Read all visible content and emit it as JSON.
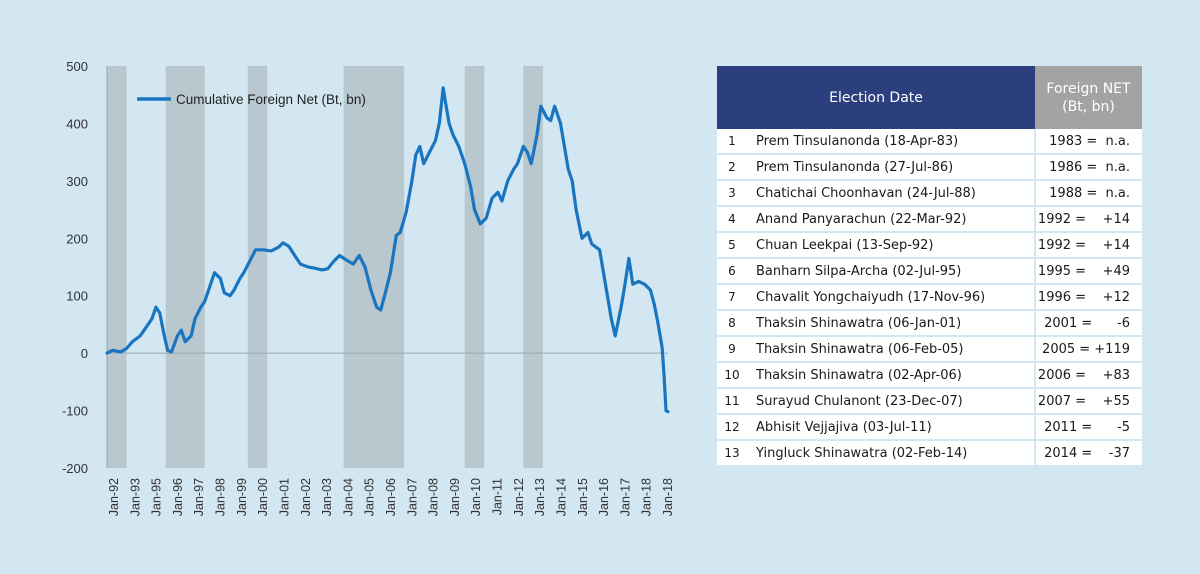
{
  "chart_data": {
    "type": "line",
    "series": [
      {
        "name": "Cumulative Foreign Net (Bt, bn)",
        "color": "#1a75c0",
        "points": [
          [
            1992.0,
            0
          ],
          [
            1992.3,
            5
          ],
          [
            1992.7,
            2
          ],
          [
            1993.0,
            8
          ],
          [
            1993.3,
            20
          ],
          [
            1993.7,
            30
          ],
          [
            1994.0,
            45
          ],
          [
            1994.3,
            60
          ],
          [
            1994.5,
            80
          ],
          [
            1994.7,
            70
          ],
          [
            1994.9,
            35
          ],
          [
            1995.1,
            5
          ],
          [
            1995.3,
            2
          ],
          [
            1995.6,
            30
          ],
          [
            1995.8,
            40
          ],
          [
            1996.0,
            20
          ],
          [
            1996.3,
            30
          ],
          [
            1996.5,
            60
          ],
          [
            1996.8,
            80
          ],
          [
            1997.0,
            90
          ],
          [
            1997.3,
            120
          ],
          [
            1997.5,
            140
          ],
          [
            1997.8,
            130
          ],
          [
            1998.0,
            105
          ],
          [
            1998.3,
            100
          ],
          [
            1998.5,
            110
          ],
          [
            1998.8,
            130
          ],
          [
            1999.0,
            140
          ],
          [
            1999.3,
            160
          ],
          [
            1999.6,
            180
          ],
          [
            2000.0,
            180
          ],
          [
            2000.4,
            178
          ],
          [
            2000.8,
            185
          ],
          [
            2001.0,
            192
          ],
          [
            2001.3,
            186
          ],
          [
            2001.6,
            170
          ],
          [
            2001.9,
            155
          ],
          [
            2002.3,
            150
          ],
          [
            2002.6,
            148
          ],
          [
            2003.0,
            145
          ],
          [
            2003.3,
            147
          ],
          [
            2003.6,
            160
          ],
          [
            2003.9,
            170
          ],
          [
            2004.2,
            163
          ],
          [
            2004.6,
            155
          ],
          [
            2004.9,
            170
          ],
          [
            2005.2,
            150
          ],
          [
            2005.5,
            110
          ],
          [
            2005.8,
            80
          ],
          [
            2006.0,
            75
          ],
          [
            2006.2,
            100
          ],
          [
            2006.5,
            140
          ],
          [
            2006.8,
            205
          ],
          [
            2007.0,
            210
          ],
          [
            2007.3,
            245
          ],
          [
            2007.6,
            300
          ],
          [
            2007.8,
            345
          ],
          [
            2008.0,
            360
          ],
          [
            2008.2,
            330
          ],
          [
            2008.5,
            350
          ],
          [
            2008.8,
            370
          ],
          [
            2009.0,
            400
          ],
          [
            2009.2,
            462
          ],
          [
            2009.3,
            440
          ],
          [
            2009.5,
            400
          ],
          [
            2009.7,
            380
          ],
          [
            2010.0,
            360
          ],
          [
            2010.3,
            330
          ],
          [
            2010.6,
            290
          ],
          [
            2010.8,
            250
          ],
          [
            2011.1,
            225
          ],
          [
            2011.4,
            235
          ],
          [
            2011.7,
            270
          ],
          [
            2012.0,
            280
          ],
          [
            2012.2,
            265
          ],
          [
            2012.5,
            300
          ],
          [
            2012.8,
            320
          ],
          [
            2013.0,
            330
          ],
          [
            2013.3,
            360
          ],
          [
            2013.5,
            350
          ],
          [
            2013.7,
            330
          ],
          [
            2014.0,
            380
          ],
          [
            2014.2,
            430
          ],
          [
            2014.5,
            410
          ],
          [
            2014.7,
            405
          ],
          [
            2014.9,
            430
          ],
          [
            2015.0,
            420
          ],
          [
            2015.2,
            400
          ],
          [
            2015.4,
            360
          ],
          [
            2015.6,
            320
          ],
          [
            2015.8,
            300
          ],
          [
            2016.0,
            250
          ],
          [
            2016.3,
            200
          ],
          [
            2016.6,
            210
          ],
          [
            2016.8,
            190
          ],
          [
            2017.2,
            180
          ],
          [
            2017.4,
            140
          ],
          [
            2017.6,
            100
          ],
          [
            2017.8,
            60
          ],
          [
            2018.0,
            30
          ],
          [
            2018.3,
            80
          ],
          [
            2018.5,
            120
          ],
          [
            2018.7,
            165
          ],
          [
            2018.9,
            120
          ],
          [
            2019.2,
            125
          ],
          [
            2019.5,
            120
          ],
          [
            2019.8,
            110
          ],
          [
            2020.0,
            85
          ],
          [
            2020.2,
            50
          ],
          [
            2020.4,
            10
          ],
          [
            2020.5,
            -40
          ],
          [
            2020.6,
            -100
          ],
          [
            2020.7,
            -102
          ]
        ]
      }
    ],
    "ylim": [
      -200,
      500
    ],
    "yticks": [
      "500",
      "400",
      "300",
      "200",
      "100",
      "0",
      "-100",
      "-200"
    ],
    "ytick_values": [
      500,
      400,
      300,
      200,
      100,
      0,
      -100,
      -200
    ],
    "xticks": [
      "Jan-92",
      "Jan-93",
      "Jan-95",
      "Jan-96",
      "Jan-97",
      "Jan-98",
      "Jan-99",
      "Jan-00",
      "Jan-01",
      "Jan-02",
      "Jan-03",
      "Jan-04",
      "Jan-05",
      "Jan-06",
      "Jan-07",
      "Jan-08",
      "Jan-09",
      "Jan-10",
      "Jan-11",
      "Jan-12",
      "Jan-13",
      "Jan-14",
      "Jan-15",
      "Jan-16",
      "Jan-17",
      "Jan-18",
      "Jan-18"
    ],
    "election_bands": [
      [
        1992.0,
        1993.0
      ],
      [
        1995.0,
        1997.0
      ],
      [
        1999.2,
        2000.2
      ],
      [
        2004.1,
        2007.2
      ],
      [
        2010.3,
        2011.3
      ],
      [
        2013.3,
        2014.3
      ]
    ],
    "legend": "top-left",
    "grid": false,
    "colors": {
      "line": "#1a75c0",
      "band": "#b9c7cf",
      "axis_text": "#333333"
    }
  },
  "table": {
    "header_date": "Election Date",
    "header_net_line1": "Foreign NET",
    "header_net_line2": "(Bt, bn)",
    "rows": [
      {
        "n": "1",
        "name": "Prem Tinsulanonda (18-Apr-83)",
        "net": "1983 =  n.a."
      },
      {
        "n": "2",
        "name": "Prem Tinsulanonda (27-Jul-86)",
        "net": "1986 =  n.a."
      },
      {
        "n": "3",
        "name": "Chatichai Choonhavan (24-Jul-88)",
        "net": "1988 =  n.a."
      },
      {
        "n": "4",
        "name": "Anand Panyarachun (22-Mar-92)",
        "net": "1992 =    +14"
      },
      {
        "n": "5",
        "name": "Chuan Leekpai (13-Sep-92)",
        "net": "1992 =    +14"
      },
      {
        "n": "6",
        "name": "Banharn Silpa-Archa (02-Jul-95)",
        "net": "1995 =    +49"
      },
      {
        "n": "7",
        "name": "Chavalit Yongchaiyudh (17-Nov-96)",
        "net": "1996 =    +12"
      },
      {
        "n": "8",
        "name": "Thaksin Shinawatra (06-Jan-01)",
        "net": "2001 =      -6"
      },
      {
        "n": "9",
        "name": "Thaksin Shinawatra (06-Feb-05)",
        "net": "2005 = +119"
      },
      {
        "n": "10",
        "name": "Thaksin Shinawatra (02-Apr-06)",
        "net": "2006 =    +83"
      },
      {
        "n": "11",
        "name": "Surayud Chulanont (23-Dec-07)",
        "net": "2007 =    +55"
      },
      {
        "n": "12",
        "name": "Abhisit Vejjajiva (03-Jul-11)",
        "net": "2011 =      -5"
      },
      {
        "n": "13",
        "name": "Yingluck Shinawatra (02-Feb-14)",
        "net": "2014 =    -37"
      }
    ]
  }
}
